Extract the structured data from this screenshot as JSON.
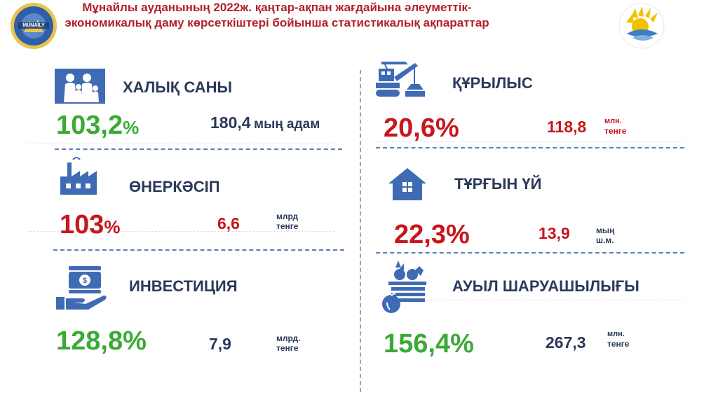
{
  "header": {
    "line1": "Мұнайлы ауданының 2022ж. қаңтар-ақпан жағдайына әлеуметтік-",
    "line2": "экономикалық даму көрсеткіштері бойынша статистикалық ақпараттар",
    "logo_left_text": "MUNAILY"
  },
  "colors": {
    "title": "#b3202a",
    "green": "#3aaa35",
    "red": "#c8161d",
    "label": "#2b3a5a",
    "icon": "#3f6bb5"
  },
  "left": [
    {
      "icon": "family-icon",
      "label": "ХАЛЫҚ САНЫ",
      "percent": "103,2",
      "percent_sign": "%",
      "value": "180,4",
      "unit": "мың адам"
    },
    {
      "icon": "factory-icon",
      "label": "ӨНЕРКӘСІП",
      "percent": "103",
      "percent_sign": "%",
      "value": "6,6",
      "unit": "млрд тенге"
    },
    {
      "icon": "investment-icon",
      "label": "ИНВЕСТИЦИЯ",
      "percent": "128,8%",
      "value": "7,9",
      "unit": "млрд. тенге"
    }
  ],
  "right": [
    {
      "icon": "crane-icon",
      "label": "ҚҰРЫЛЫС",
      "percent": "20,6%",
      "value": "118,8",
      "unit_line1": "млн.",
      "unit_line2": "тенге"
    },
    {
      "icon": "house-icon",
      "label": "ТҰРҒЫН ҮЙ",
      "percent": "22,3%",
      "value": "13,9",
      "unit_line1": "мың",
      "unit_line2": "ш.м."
    },
    {
      "icon": "agriculture-icon",
      "label": "АУЫЛ ШАРУАШЫЛЫҒЫ",
      "percent": "156,4%",
      "value": "267,3",
      "unit_line1": "млн.",
      "unit_line2": "тенге"
    }
  ]
}
